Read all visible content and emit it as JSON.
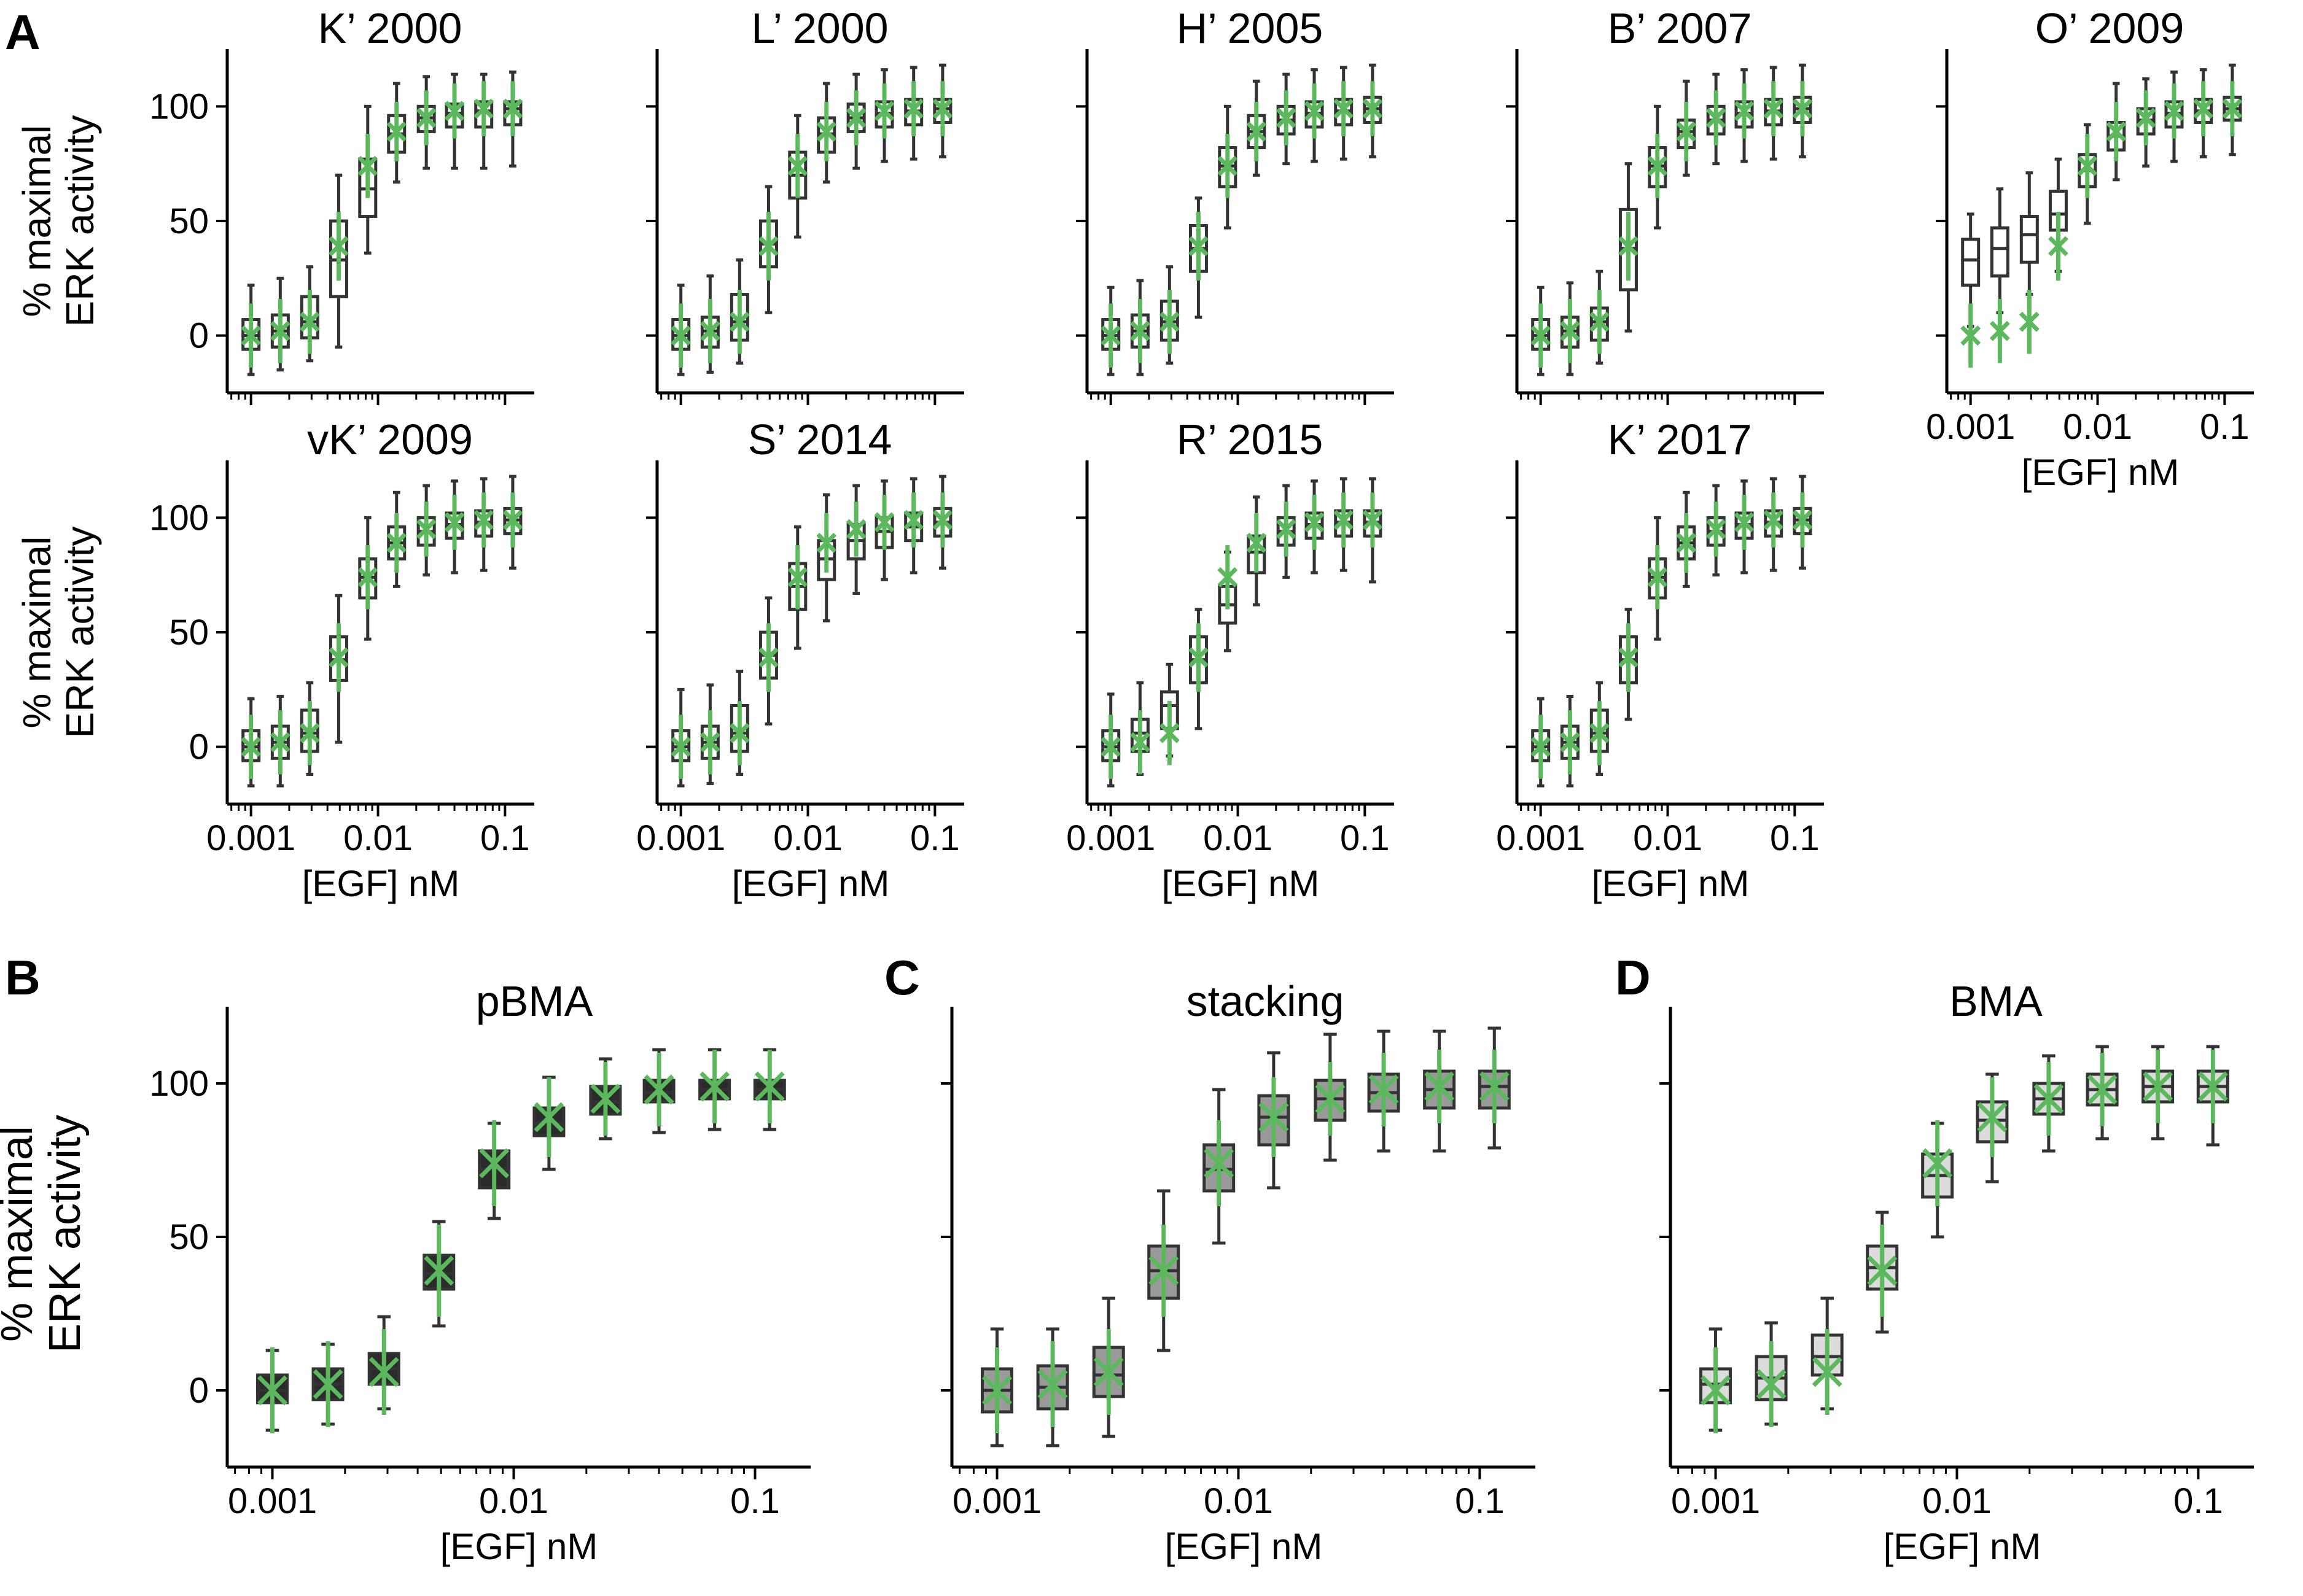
{
  "figure": {
    "colors": {
      "experiment": "#5cb85c",
      "box_edge": "#333333",
      "pbma_fill": "#2b2b2b",
      "stacking_fill": "#9a9a9a",
      "bma_fill": "#dcdcdc",
      "model_fill": "#ffffff"
    },
    "shared_x": {
      "doses": [
        0.001,
        0.0017,
        0.0029,
        0.0049,
        0.0083,
        0.014,
        0.024,
        0.04,
        0.068,
        0.115
      ],
      "tick_values": [
        0.001,
        0.01,
        0.1
      ],
      "tick_labels": [
        "0.001",
        "0.01",
        "0.1"
      ],
      "label": "[EGF] nM"
    },
    "shared_y": {
      "tick_values": [
        0,
        50,
        100
      ],
      "tick_labels": [
        "0",
        "50",
        "100"
      ],
      "label_line1": "% maximal",
      "label_line2": "ERK activity",
      "ylim": [
        -25,
        125
      ]
    },
    "experiment_mean": [
      0,
      2,
      6,
      39,
      74,
      89,
      95,
      98,
      99,
      99
    ],
    "experiment_err": [
      14,
      14,
      14,
      15,
      14,
      13,
      12,
      12,
      12,
      12
    ],
    "panel_A": {
      "letter": "A",
      "models": [
        {
          "title": "K’ 2000",
          "med": [
            0,
            2,
            6,
            33,
            64,
            88,
            95,
            97,
            98,
            99
          ],
          "q1": [
            -6,
            -5,
            -1,
            17,
            52,
            80,
            89,
            91,
            91,
            92
          ],
          "q3": [
            7,
            9,
            17,
            50,
            77,
            96,
            100,
            101,
            102,
            102
          ],
          "lo": [
            -17,
            -15,
            -11,
            -5,
            36,
            67,
            73,
            73,
            73,
            74
          ],
          "hi": [
            22,
            25,
            30,
            70,
            100,
            110,
            113,
            114,
            114,
            115
          ]
        },
        {
          "title": "L’ 2000",
          "med": [
            0,
            2,
            6,
            40,
            70,
            88,
            95,
            97,
            98,
            99
          ],
          "q1": [
            -6,
            -5,
            -2,
            30,
            60,
            80,
            89,
            91,
            92,
            93
          ],
          "q3": [
            7,
            8,
            18,
            50,
            80,
            95,
            101,
            102,
            103,
            103
          ],
          "lo": [
            -17,
            -16,
            -12,
            10,
            43,
            67,
            73,
            76,
            77,
            78
          ],
          "hi": [
            22,
            26,
            33,
            65,
            96,
            110,
            114,
            116,
            117,
            118
          ]
        },
        {
          "title": "H’ 2005",
          "med": [
            0,
            2,
            6,
            38,
            74,
            89,
            94,
            97,
            98,
            99
          ],
          "q1": [
            -6,
            -5,
            -2,
            28,
            65,
            82,
            88,
            91,
            92,
            93
          ],
          "q3": [
            7,
            9,
            15,
            48,
            82,
            96,
            100,
            102,
            103,
            104
          ],
          "lo": [
            -17,
            -17,
            -12,
            8,
            47,
            70,
            75,
            76,
            77,
            78
          ],
          "hi": [
            21,
            24,
            30,
            60,
            100,
            111,
            114,
            116,
            117,
            118
          ]
        },
        {
          "title": "B’ 2007",
          "med": [
            0,
            2,
            6,
            38,
            74,
            89,
            94,
            97,
            98,
            99
          ],
          "q1": [
            -6,
            -5,
            -2,
            20,
            65,
            82,
            88,
            91,
            92,
            93
          ],
          "q3": [
            7,
            8,
            12,
            55,
            82,
            94,
            100,
            102,
            103,
            104
          ],
          "lo": [
            -17,
            -17,
            -12,
            2,
            47,
            70,
            75,
            76,
            77,
            78
          ],
          "hi": [
            21,
            23,
            28,
            75,
            100,
            111,
            114,
            116,
            117,
            118
          ]
        },
        {
          "title": "O’ 2009",
          "med": [
            33,
            38,
            44,
            53,
            72,
            87,
            94,
            97,
            98,
            99
          ],
          "q1": [
            22,
            26,
            32,
            46,
            65,
            81,
            88,
            91,
            93,
            94
          ],
          "q3": [
            42,
            47,
            52,
            63,
            79,
            93,
            99,
            102,
            103,
            104
          ],
          "lo": [
            4,
            10,
            18,
            28,
            49,
            68,
            74,
            76,
            78,
            79
          ],
          "hi": [
            53,
            64,
            71,
            77,
            92,
            110,
            112,
            115,
            116,
            118
          ]
        },
        {
          "title": "vK’ 2009",
          "med": [
            0,
            2,
            6,
            38,
            74,
            89,
            94,
            97,
            98,
            99
          ],
          "q1": [
            -6,
            -5,
            -2,
            29,
            65,
            82,
            88,
            91,
            92,
            93
          ],
          "q3": [
            7,
            9,
            16,
            48,
            82,
            96,
            100,
            102,
            103,
            104
          ],
          "lo": [
            -17,
            -17,
            -12,
            2,
            47,
            70,
            75,
            76,
            77,
            78
          ],
          "hi": [
            21,
            22,
            28,
            66,
            100,
            111,
            114,
            116,
            117,
            118
          ]
        },
        {
          "title": "S’ 2014",
          "med": [
            0,
            2,
            6,
            40,
            70,
            82,
            90,
            94,
            96,
            98
          ],
          "q1": [
            -6,
            -5,
            -2,
            30,
            60,
            73,
            82,
            87,
            90,
            92
          ],
          "q3": [
            7,
            9,
            18,
            50,
            80,
            90,
            97,
            100,
            102,
            104
          ],
          "lo": [
            -17,
            -16,
            -12,
            10,
            43,
            55,
            67,
            73,
            76,
            78
          ],
          "hi": [
            25,
            27,
            33,
            65,
            96,
            110,
            114,
            116,
            117,
            118
          ]
        },
        {
          "title": "R’ 2015",
          "med": [
            0,
            6,
            18,
            38,
            62,
            85,
            94,
            97,
            98,
            98
          ],
          "q1": [
            -6,
            -2,
            8,
            28,
            54,
            76,
            88,
            91,
            92,
            92
          ],
          "q3": [
            7,
            12,
            24,
            48,
            70,
            92,
            100,
            102,
            103,
            103
          ],
          "lo": [
            -17,
            -12,
            -4,
            8,
            42,
            62,
            74,
            76,
            77,
            72
          ],
          "hi": [
            23,
            28,
            36,
            60,
            85,
            109,
            114,
            116,
            117,
            117
          ]
        },
        {
          "title": "K’ 2017",
          "med": [
            0,
            2,
            6,
            38,
            74,
            89,
            94,
            97,
            98,
            99
          ],
          "q1": [
            -6,
            -5,
            -2,
            28,
            65,
            82,
            88,
            91,
            92,
            93
          ],
          "q3": [
            7,
            9,
            16,
            48,
            82,
            96,
            100,
            102,
            103,
            104
          ],
          "lo": [
            -17,
            -17,
            -12,
            12,
            47,
            70,
            75,
            76,
            77,
            78
          ],
          "hi": [
            21,
            22,
            28,
            60,
            100,
            111,
            114,
            116,
            117,
            118
          ]
        }
      ]
    },
    "panel_B": {
      "letter": "B",
      "title": "pBMA",
      "med": [
        0,
        2,
        7,
        38,
        72,
        87,
        94,
        97,
        98,
        98
      ],
      "q1": [
        -4,
        -3,
        2,
        33,
        66,
        83,
        90,
        94,
        95,
        95
      ],
      "q3": [
        5,
        7,
        12,
        44,
        78,
        92,
        99,
        101,
        101,
        101
      ],
      "lo": [
        -13,
        -11,
        -6,
        21,
        56,
        72,
        82,
        84,
        85,
        85
      ],
      "hi": [
        13,
        15,
        24,
        55,
        87,
        102,
        108,
        111,
        111,
        111
      ]
    },
    "panel_C": {
      "letter": "C",
      "title": "stacking",
      "med": [
        0,
        1,
        5,
        39,
        72,
        89,
        95,
        97,
        98,
        99
      ],
      "q1": [
        -7,
        -6,
        -2,
        30,
        65,
        80,
        88,
        91,
        92,
        92
      ],
      "q3": [
        7,
        8,
        14,
        47,
        80,
        96,
        101,
        103,
        104,
        104
      ],
      "lo": [
        -18,
        -18,
        -15,
        13,
        48,
        66,
        75,
        78,
        78,
        79
      ],
      "hi": [
        20,
        20,
        30,
        65,
        98,
        110,
        116,
        117,
        117,
        118
      ]
    },
    "panel_D": {
      "letter": "D",
      "title": "BMA",
      "med": [
        2,
        4,
        11,
        40,
        70,
        88,
        95,
        98,
        99,
        99
      ],
      "q1": [
        -4,
        -3,
        5,
        33,
        63,
        81,
        90,
        93,
        94,
        94
      ],
      "q3": [
        7,
        11,
        18,
        47,
        77,
        94,
        100,
        103,
        104,
        104
      ],
      "lo": [
        -13,
        -11,
        -6,
        19,
        50,
        68,
        78,
        82,
        82,
        80
      ],
      "hi": [
        20,
        22,
        30,
        58,
        87,
        103,
        109,
        112,
        112,
        112
      ]
    },
    "chart_data": [
      {
        "type": "box",
        "title": "K’ 2000",
        "xlabel": "[EGF] nM",
        "ylabel": "% maximal ERK activity",
        "xscale": "log",
        "ylim": [
          -25,
          125
        ]
      },
      {
        "type": "box",
        "title": "L’ 2000",
        "xlabel": "[EGF] nM",
        "ylabel": "% maximal ERK activity",
        "xscale": "log",
        "ylim": [
          -25,
          125
        ]
      },
      {
        "type": "box",
        "title": "H’ 2005",
        "xlabel": "[EGF] nM",
        "ylabel": "% maximal ERK activity",
        "xscale": "log",
        "ylim": [
          -25,
          125
        ]
      },
      {
        "type": "box",
        "title": "B’ 2007",
        "xlabel": "[EGF] nM",
        "ylabel": "% maximal ERK activity",
        "xscale": "log",
        "ylim": [
          -25,
          125
        ]
      },
      {
        "type": "box",
        "title": "O’ 2009",
        "xlabel": "[EGF] nM",
        "ylabel": "% maximal ERK activity",
        "xscale": "log",
        "ylim": [
          -25,
          125
        ]
      },
      {
        "type": "box",
        "title": "vK’ 2009",
        "xlabel": "[EGF] nM",
        "ylabel": "% maximal ERK activity",
        "xscale": "log",
        "ylim": [
          -25,
          125
        ]
      },
      {
        "type": "box",
        "title": "S’ 2014",
        "xlabel": "[EGF] nM",
        "ylabel": "% maximal ERK activity",
        "xscale": "log",
        "ylim": [
          -25,
          125
        ]
      },
      {
        "type": "box",
        "title": "R’ 2015",
        "xlabel": "[EGF] nM",
        "ylabel": "% maximal ERK activity",
        "xscale": "log",
        "ylim": [
          -25,
          125
        ]
      },
      {
        "type": "box",
        "title": "K’ 2017",
        "xlabel": "[EGF] nM",
        "ylabel": "% maximal ERK activity",
        "xscale": "log",
        "ylim": [
          -25,
          125
        ]
      },
      {
        "type": "box",
        "title": "pBMA",
        "xlabel": "[EGF] nM",
        "ylabel": "% maximal ERK activity",
        "xscale": "log",
        "ylim": [
          -25,
          125
        ]
      },
      {
        "type": "box",
        "title": "stacking",
        "xlabel": "[EGF] nM",
        "ylabel": "% maximal ERK activity",
        "xscale": "log",
        "ylim": [
          -25,
          125
        ]
      },
      {
        "type": "box",
        "title": "BMA",
        "xlabel": "[EGF] nM",
        "ylabel": "% maximal ERK activity",
        "xscale": "log",
        "ylim": [
          -25,
          125
        ]
      }
    ]
  }
}
